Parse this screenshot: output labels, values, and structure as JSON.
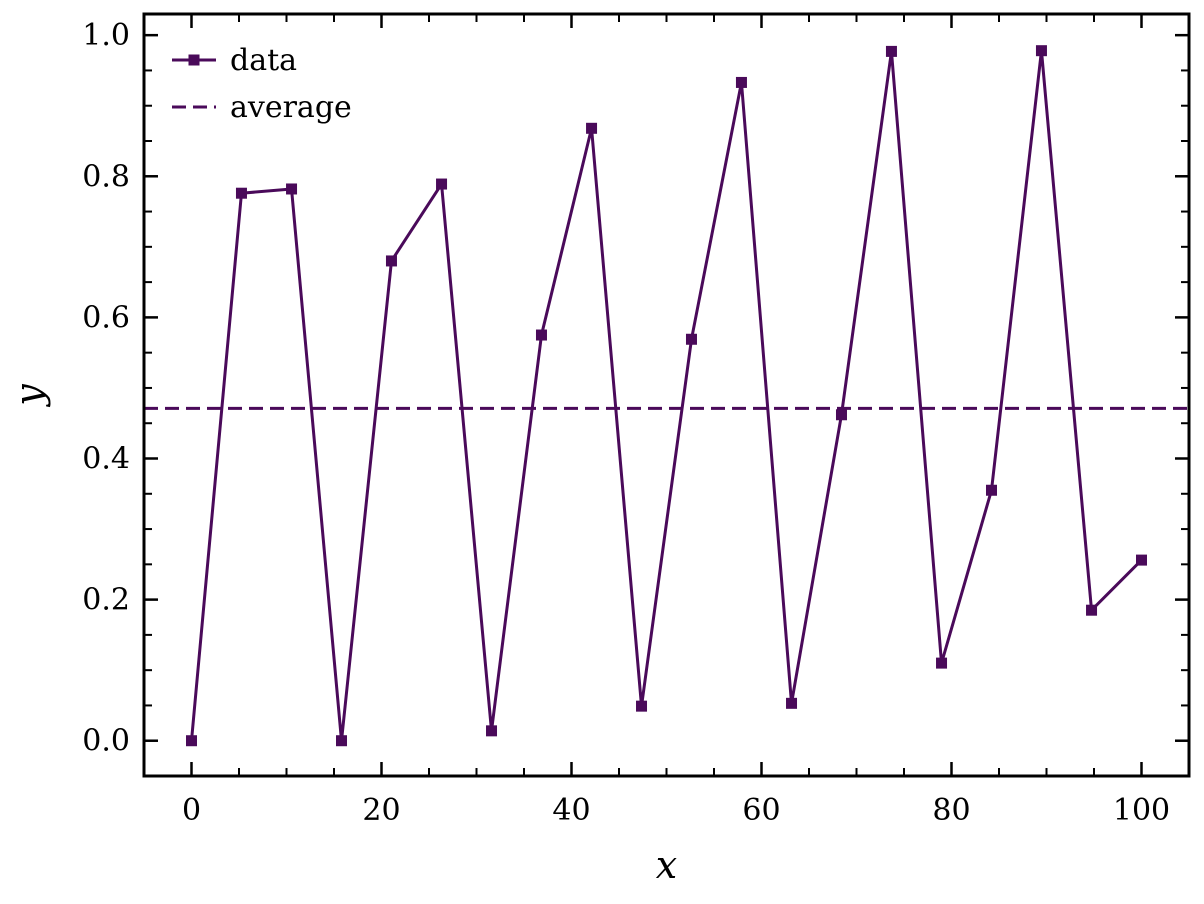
{
  "chart_data": {
    "type": "line",
    "xlabel": "x",
    "ylabel": "y",
    "xlim": [
      -5,
      105
    ],
    "ylim": [
      -0.05,
      1.03
    ],
    "xticks": [
      0,
      20,
      40,
      60,
      80,
      100
    ],
    "xtick_labels": [
      "0",
      "20",
      "40",
      "60",
      "80",
      "100"
    ],
    "yticks": [
      0.0,
      0.2,
      0.4,
      0.6,
      0.8,
      1.0
    ],
    "ytick_labels": [
      "0.0",
      "0.2",
      "0.4",
      "0.6",
      "0.8",
      "1.0"
    ],
    "grid": false,
    "legend_position": "top-left",
    "color": "#4a0a5a",
    "series": [
      {
        "name": "data",
        "style": "solid-line-square-markers",
        "x": [
          0,
          5.26,
          10.53,
          15.79,
          21.05,
          26.32,
          31.58,
          36.84,
          42.11,
          47.37,
          52.63,
          57.89,
          63.16,
          68.42,
          73.68,
          78.95,
          84.21,
          89.47,
          94.74,
          100
        ],
        "y": [
          0.0,
          0.776,
          0.782,
          0.0,
          0.68,
          0.789,
          0.014,
          0.575,
          0.868,
          0.049,
          0.569,
          0.933,
          0.053,
          0.462,
          0.977,
          0.11,
          0.355,
          0.978,
          0.185,
          0.256
        ]
      },
      {
        "name": "average",
        "style": "dashed-line",
        "y": 0.471
      }
    ]
  }
}
